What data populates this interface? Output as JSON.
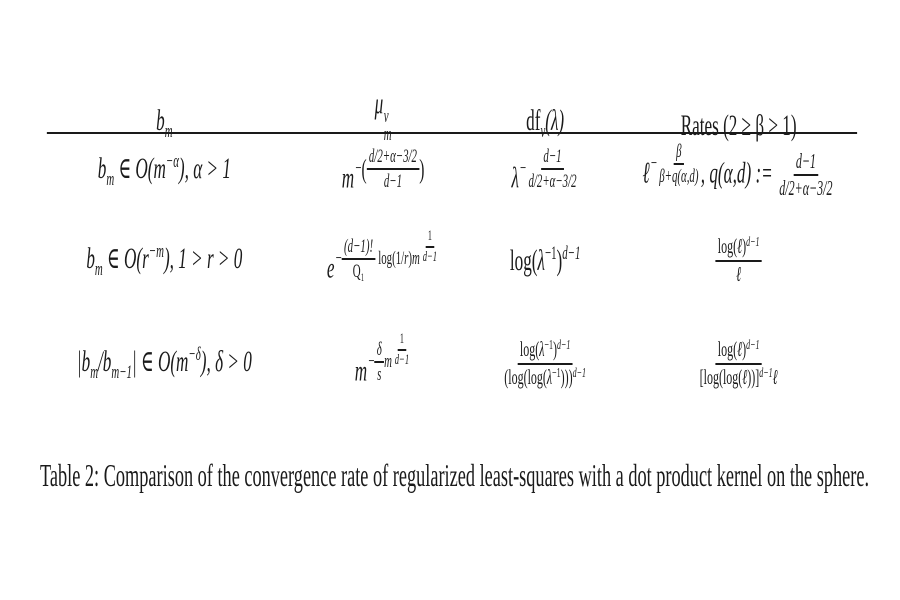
{
  "page": {
    "background": "#ffffff",
    "text_color": "#1a1a1a"
  },
  "table": {
    "headers": {
      "h1": {
        "base": "b",
        "sub": "m"
      },
      "h2": {
        "base": "μ",
        "sup": "ν",
        "sub": "m"
      },
      "h3": {
        "fn": "df",
        "sub": "ν",
        "arg": "(λ)"
      },
      "h4": {
        "label": "Rates (2 ≥ β > 1)"
      }
    },
    "rows": [
      {
        "c1": {
          "a": "b",
          "sub": "m",
          "b": " ∈ O(m",
          "sup": "−α",
          "c": "), α > 1"
        },
        "c2": {
          "base": "m",
          "neg": "−",
          "lp": "(",
          "frac": {
            "num": "d/2+α−3/2",
            "den": "d−1"
          },
          "rp": ")"
        },
        "c3": {
          "base": "λ",
          "neg": "−",
          "frac": {
            "num": "d−1",
            "den": "d/2+α−3/2"
          }
        },
        "c4": {
          "base": "ℓ",
          "neg": "−",
          "frac": {
            "num": "β",
            "den": "β+q(α,d)"
          },
          "mid": ", q(α,d) := ",
          "frac2": {
            "num": "d−1",
            "den": "d/2+α−3/2"
          }
        }
      },
      {
        "c1": {
          "a": "b",
          "sub": "m",
          "b": " ∈ O(r",
          "sup": "−m",
          "c": "), 1 > r > 0"
        },
        "c2": {
          "base": "e",
          "neg": "−",
          "frac": {
            "num": "(d−1)!",
            "den": "Q₁"
          },
          "mid1": "log(1/",
          "mid2": "r",
          "mid3": ")",
          "mid4": "m",
          "efrac": {
            "num": "1",
            "den": "d−1"
          }
        },
        "c3": {
          "a": "log(",
          "b": "λ",
          "s1": "−1",
          "c": ")",
          "s2": "d−1"
        },
        "c4": {
          "frac": {
            "num": {
              "a": "log(",
              "b": "ℓ",
              "c": ")",
              "s": "d−1"
            },
            "den": "ℓ"
          }
        }
      },
      {
        "c1": {
          "a": "|b",
          "sub": "m",
          "b": "/b",
          "sub2": "m−1",
          "c": "| ∈ O(m",
          "sup": "−δ",
          "d": "), δ > 0"
        },
        "c2": {
          "base": "m",
          "neg": "−",
          "frac": {
            "num": "δ",
            "den": "s"
          },
          "mid4": "m",
          "efrac": {
            "num": "1",
            "den": "d−1"
          }
        },
        "c3": {
          "frac": {
            "num": {
              "a": "log(",
              "b": "λ",
              "s1": "−1",
              "c": ")",
              "s2": "d−1"
            },
            "den": {
              "a": "(log(log(",
              "b": "λ",
              "s1": "−1",
              "c": ")))",
              "s2": "d−1"
            }
          }
        },
        "c4": {
          "frac": {
            "num": {
              "a": "log(",
              "b": "ℓ",
              "c": ")",
              "s": "d−1"
            },
            "den": {
              "a": "[log(log(",
              "b": "ℓ",
              "c": "))]",
              "s": "d−1",
              "e": "ℓ"
            }
          }
        }
      }
    ]
  },
  "caption": "Table 2: Comparison of the convergence rate of regularized least-squares with a dot product kernel on the sphere."
}
